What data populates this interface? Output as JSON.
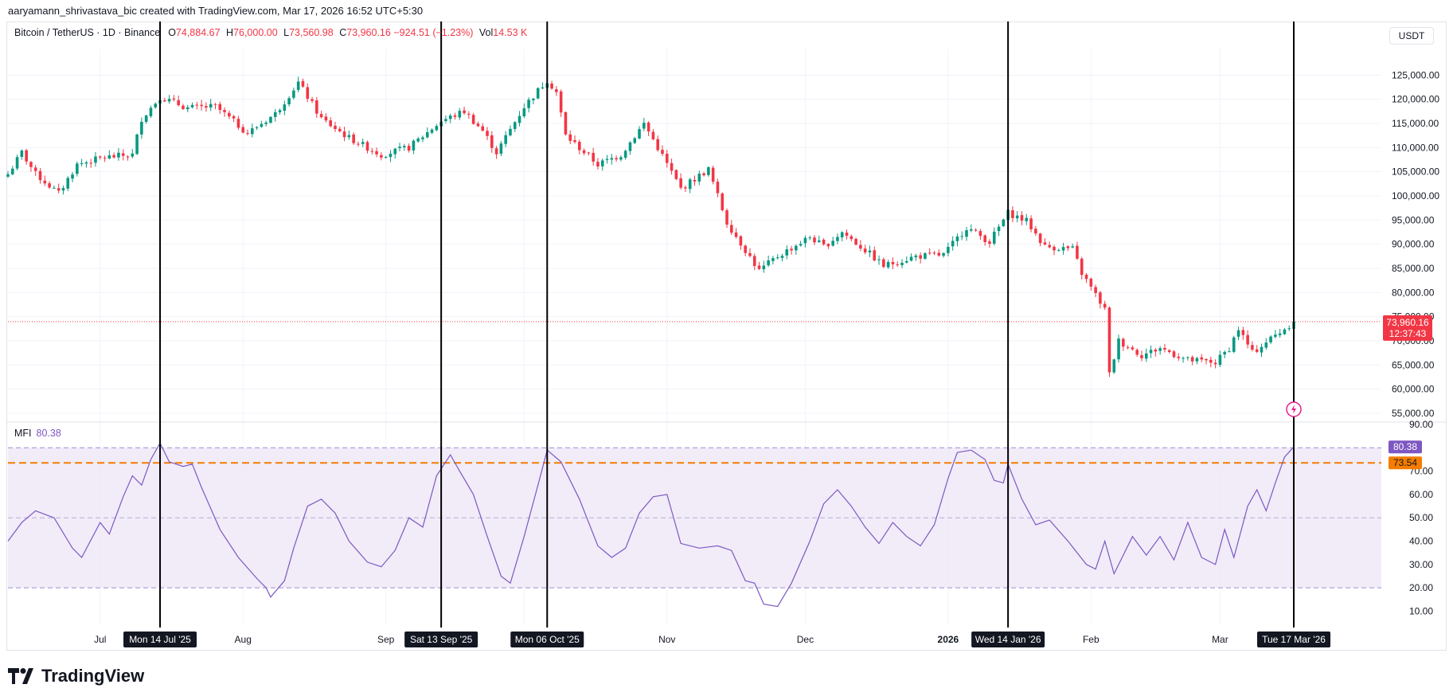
{
  "header": {
    "attribution": "aaryamann_shrivastava_bic created with TradingView.com, Mar 17, 2026 16:52 UTC+5:30"
  },
  "legend": {
    "symbol": "Bitcoin / TetherUS · 1D · Binance",
    "o_key": "O",
    "open": "74,884.67",
    "h_key": "H",
    "high": "76,000.00",
    "l_key": "L",
    "low": "73,560.98",
    "c_key": "C",
    "close": "73,960.16",
    "change": "−924.51 (−1.23%)",
    "vol_key": "Vol",
    "volume": "14.53 K"
  },
  "mfi_legend": {
    "label": "MFI",
    "value": "80.38"
  },
  "currency_button": "USDT",
  "brand": {
    "name": "TradingView"
  },
  "colors": {
    "up": "#089981",
    "down": "#f23645",
    "mfi": "#7e57c2",
    "ma": "#f57c00",
    "band_fill": "#ede7f6"
  },
  "chart_data": [
    {
      "type": "candlestick",
      "title": "Bitcoin / TetherUS · 1D · Binance",
      "y_axis_ticks": [
        55000,
        60000,
        65000,
        70000,
        75000,
        80000,
        85000,
        90000,
        95000,
        100000,
        105000,
        110000,
        115000,
        120000,
        125000
      ],
      "y_axis_tick_labels": [
        "55,000.00",
        "60,000.00",
        "65,000.00",
        "70,000.00",
        "75,000.00",
        "80,000.00",
        "85,000.00",
        "90,000.00",
        "95,000.00",
        "100,000.00",
        "105,000.00",
        "110,000.00",
        "115,000.00",
        "120,000.00",
        "125,000.00"
      ],
      "ylim": [
        53500,
        130500
      ],
      "x_range": [
        "2025-06-11",
        "2026-04-05"
      ],
      "month_ticks": [
        {
          "date": "2025-07-01",
          "label": "Jul"
        },
        {
          "date": "2025-08-01",
          "label": "Aug"
        },
        {
          "date": "2025-09-01",
          "label": "Sep"
        },
        {
          "date": "2025-10-01",
          "label": "Oct"
        },
        {
          "date": "2025-11-01",
          "label": "Nov"
        },
        {
          "date": "2025-12-01",
          "label": "Dec"
        },
        {
          "date": "2026-01-01",
          "label": "2026"
        },
        {
          "date": "2026-02-01",
          "label": "Feb"
        },
        {
          "date": "2026-03-01",
          "label": "Mar"
        }
      ],
      "anchors": [
        [
          "2025-06-11",
          104500
        ],
        [
          "2025-06-14",
          109000
        ],
        [
          "2025-06-17",
          104500
        ],
        [
          "2025-06-22",
          100500
        ],
        [
          "2025-06-26",
          106500
        ],
        [
          "2025-07-02",
          108000
        ],
        [
          "2025-07-08",
          108500
        ],
        [
          "2025-07-10",
          116000
        ],
        [
          "2025-07-14",
          120500
        ],
        [
          "2025-07-20",
          118200
        ],
        [
          "2025-07-26",
          118500
        ],
        [
          "2025-08-02",
          113000
        ],
        [
          "2025-08-08",
          117000
        ],
        [
          "2025-08-13",
          123500
        ],
        [
          "2025-08-18",
          116000
        ],
        [
          "2025-08-24",
          112000
        ],
        [
          "2025-08-31",
          108500
        ],
        [
          "2025-09-06",
          110000
        ],
        [
          "2025-09-13",
          115500
        ],
        [
          "2025-09-18",
          117500
        ],
        [
          "2025-09-22",
          113500
        ],
        [
          "2025-09-25",
          109000
        ],
        [
          "2025-10-01",
          118500
        ],
        [
          "2025-10-06",
          124000
        ],
        [
          "2025-10-08",
          121500
        ],
        [
          "2025-10-10",
          112500
        ],
        [
          "2025-10-17",
          106500
        ],
        [
          "2025-10-22",
          108500
        ],
        [
          "2025-10-27",
          115000
        ],
        [
          "2025-10-30",
          110000
        ],
        [
          "2025-11-04",
          101500
        ],
        [
          "2025-11-10",
          105500
        ],
        [
          "2025-11-14",
          94500
        ],
        [
          "2025-11-21",
          84500
        ],
        [
          "2025-11-25",
          87500
        ],
        [
          "2025-12-02",
          91500
        ],
        [
          "2025-12-05",
          89500
        ],
        [
          "2025-12-09",
          92500
        ],
        [
          "2025-12-15",
          88000
        ],
        [
          "2025-12-18",
          85500
        ],
        [
          "2025-12-25",
          87500
        ],
        [
          "2025-12-31",
          87800
        ],
        [
          "2026-01-05",
          93500
        ],
        [
          "2026-01-10",
          90500
        ],
        [
          "2026-01-14",
          96500
        ],
        [
          "2026-01-18",
          94800
        ],
        [
          "2026-01-22",
          89500
        ],
        [
          "2026-01-28",
          89000
        ],
        [
          "2026-01-30",
          84000
        ],
        [
          "2026-02-04",
          76500
        ],
        [
          "2026-02-05",
          63000
        ],
        [
          "2026-02-07",
          70000
        ],
        [
          "2026-02-12",
          67000
        ],
        [
          "2026-02-16",
          68500
        ],
        [
          "2026-02-22",
          66000
        ],
        [
          "2026-02-28",
          65500
        ],
        [
          "2026-03-03",
          68500
        ],
        [
          "2026-03-05",
          72500
        ],
        [
          "2026-03-08",
          67500
        ],
        [
          "2026-03-12",
          70500
        ],
        [
          "2026-03-15",
          72500
        ],
        [
          "2026-03-17",
          73960
        ]
      ],
      "last_price_label": "73,960.16",
      "countdown_label": "12:37:43",
      "last_price": 73960.16
    },
    {
      "type": "line",
      "title": "MFI",
      "ylim": [
        4,
        90
      ],
      "y_axis_ticks": [
        10,
        20,
        30,
        40,
        50,
        60,
        70,
        90
      ],
      "y_axis_tick_labels": [
        "10.00",
        "20.00",
        "30.00",
        "40.00",
        "50.00",
        "60.00",
        "70.00",
        "90.00"
      ],
      "band": {
        "upper": 80,
        "middle": 50,
        "lower": 20
      },
      "reference_line": {
        "value": 73.54,
        "label": "73.54"
      },
      "current_value_label": "80.38",
      "points": [
        [
          "2025-06-11",
          40
        ],
        [
          "2025-06-14",
          48
        ],
        [
          "2025-06-17",
          53
        ],
        [
          "2025-06-21",
          50
        ],
        [
          "2025-06-25",
          37
        ],
        [
          "2025-06-27",
          33
        ],
        [
          "2025-07-01",
          48
        ],
        [
          "2025-07-03",
          43
        ],
        [
          "2025-07-06",
          59
        ],
        [
          "2025-07-08",
          68
        ],
        [
          "2025-07-10",
          64
        ],
        [
          "2025-07-12",
          75
        ],
        [
          "2025-07-14",
          82
        ],
        [
          "2025-07-16",
          74
        ],
        [
          "2025-07-19",
          72
        ],
        [
          "2025-07-21",
          73
        ],
        [
          "2025-07-23",
          63
        ],
        [
          "2025-07-27",
          45
        ],
        [
          "2025-07-31",
          33
        ],
        [
          "2025-08-04",
          24
        ],
        [
          "2025-08-06",
          20
        ],
        [
          "2025-08-07",
          16
        ],
        [
          "2025-08-10",
          23
        ],
        [
          "2025-08-12",
          37
        ],
        [
          "2025-08-15",
          55
        ],
        [
          "2025-08-18",
          58
        ],
        [
          "2025-08-21",
          52
        ],
        [
          "2025-08-24",
          40
        ],
        [
          "2025-08-28",
          31
        ],
        [
          "2025-08-31",
          29
        ],
        [
          "2025-09-03",
          36
        ],
        [
          "2025-09-06",
          50
        ],
        [
          "2025-09-09",
          46
        ],
        [
          "2025-09-12",
          68
        ],
        [
          "2025-09-15",
          77
        ],
        [
          "2025-09-17",
          70
        ],
        [
          "2025-09-20",
          60
        ],
        [
          "2025-09-23",
          42
        ],
        [
          "2025-09-26",
          25
        ],
        [
          "2025-09-28",
          22
        ],
        [
          "2025-10-01",
          42
        ],
        [
          "2025-10-04",
          64
        ],
        [
          "2025-10-06",
          79
        ],
        [
          "2025-10-09",
          74
        ],
        [
          "2025-10-13",
          58
        ],
        [
          "2025-10-17",
          38
        ],
        [
          "2025-10-20",
          33
        ],
        [
          "2025-10-23",
          37
        ],
        [
          "2025-10-26",
          52
        ],
        [
          "2025-10-29",
          59
        ],
        [
          "2025-11-01",
          60
        ],
        [
          "2025-11-04",
          39
        ],
        [
          "2025-11-08",
          37
        ],
        [
          "2025-11-12",
          38
        ],
        [
          "2025-11-15",
          36
        ],
        [
          "2025-11-18",
          23
        ],
        [
          "2025-11-20",
          22
        ],
        [
          "2025-11-22",
          13
        ],
        [
          "2025-11-25",
          12
        ],
        [
          "2025-11-28",
          22
        ],
        [
          "2025-12-02",
          40
        ],
        [
          "2025-12-05",
          56
        ],
        [
          "2025-12-08",
          62
        ],
        [
          "2025-12-11",
          55
        ],
        [
          "2025-12-14",
          46
        ],
        [
          "2025-12-17",
          39
        ],
        [
          "2025-12-20",
          48
        ],
        [
          "2025-12-23",
          42
        ],
        [
          "2025-12-26",
          38
        ],
        [
          "2025-12-29",
          47
        ],
        [
          "2026-01-01",
          67
        ],
        [
          "2026-01-03",
          78
        ],
        [
          "2026-01-06",
          79
        ],
        [
          "2026-01-09",
          75
        ],
        [
          "2026-01-11",
          66
        ],
        [
          "2026-01-13",
          65
        ],
        [
          "2026-01-14",
          73
        ],
        [
          "2026-01-17",
          58
        ],
        [
          "2026-01-20",
          47
        ],
        [
          "2026-01-23",
          49
        ],
        [
          "2026-01-27",
          40
        ],
        [
          "2026-01-31",
          30
        ],
        [
          "2026-02-02",
          28
        ],
        [
          "2026-02-04",
          40
        ],
        [
          "2026-02-06",
          26
        ],
        [
          "2026-02-10",
          42
        ],
        [
          "2026-02-13",
          34
        ],
        [
          "2026-02-16",
          42
        ],
        [
          "2026-02-19",
          32
        ],
        [
          "2026-02-22",
          48
        ],
        [
          "2026-02-25",
          33
        ],
        [
          "2026-02-28",
          30
        ],
        [
          "2026-03-02",
          45
        ],
        [
          "2026-03-04",
          33
        ],
        [
          "2026-03-07",
          55
        ],
        [
          "2026-03-09",
          62
        ],
        [
          "2026-03-11",
          53
        ],
        [
          "2026-03-13",
          65
        ],
        [
          "2026-03-15",
          76
        ],
        [
          "2026-03-17",
          80.38
        ]
      ]
    }
  ],
  "markers": [
    {
      "date": "2025-07-14",
      "label": "Mon 14 Jul '25"
    },
    {
      "date": "2025-09-13",
      "label": "Sat 13 Sep '25"
    },
    {
      "date": "2025-10-06",
      "label": "Mon 06 Oct '25"
    },
    {
      "date": "2026-01-14",
      "label": "Wed 14 Jan '26"
    },
    {
      "date": "2026-03-17",
      "label": "Tue 17 Mar '26"
    }
  ]
}
